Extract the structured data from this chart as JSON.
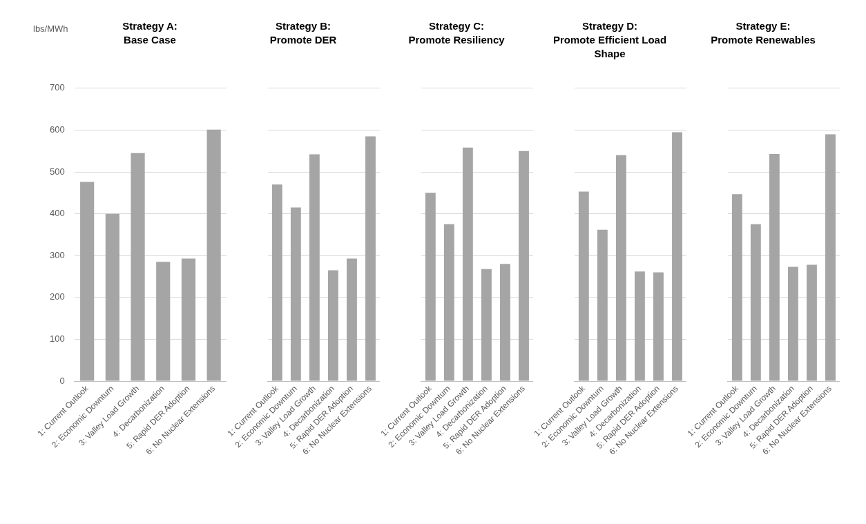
{
  "chart_data": [
    {
      "type": "bar",
      "title": "Strategy A: Base Case",
      "ylabel": "lbs/MWh",
      "categories": [
        "1: Current Outlook",
        "2: Economic Downturn",
        "3: Valley Load Growth",
        "4: Decarbonization",
        "5: Rapid DER Adoption",
        "6: No Nuclear Extensions"
      ],
      "values": [
        476,
        400,
        545,
        285,
        293,
        601
      ],
      "color": "#a5a5a5",
      "ylim": [
        0,
        700
      ],
      "yticks": [
        0,
        100,
        200,
        300,
        400,
        500,
        600,
        700
      ],
      "grid": "y"
    },
    {
      "type": "bar",
      "title": "Strategy B: Promote DER",
      "categories": [
        "1: Current Outlook",
        "2: Economic Downturn",
        "3: Valley Load Growth",
        "4: Decarbonization",
        "5: Rapid DER Adoption",
        "6: No Nuclear Extensions"
      ],
      "values": [
        470,
        415,
        542,
        265,
        293,
        585
      ],
      "color": "#a5a5a5",
      "ylim": [
        0,
        700
      ],
      "yticks": [
        0,
        100,
        200,
        300,
        400,
        500,
        600,
        700
      ],
      "grid": "y",
      "tick_labels": "x"
    },
    {
      "type": "bar",
      "title": "Strategy C: Promote Resiliency",
      "categories": [
        "1: Current Outlook",
        "2: Economic Downturn",
        "3: Valley Load Growth",
        "4: Decarbonization",
        "5: Rapid DER Adoption",
        "6: No Nuclear Extensions"
      ],
      "values": [
        450,
        375,
        558,
        268,
        280,
        550
      ],
      "color": "#a5a5a5",
      "ylim": [
        0,
        700
      ],
      "yticks": [
        0,
        100,
        200,
        300,
        400,
        500,
        600,
        700
      ],
      "grid": "y",
      "tick_labels": "x"
    },
    {
      "type": "bar",
      "title": "Strategy D: Promote Efficient Load Shape",
      "categories": [
        "1: Current Outlook",
        "2: Economic Downturn",
        "3: Valley Load Growth",
        "4: Decarbonization",
        "5: Rapid DER Adoption",
        "6: No Nuclear Extensions"
      ],
      "values": [
        453,
        362,
        540,
        262,
        260,
        595
      ],
      "color": "#a5a5a5",
      "ylim": [
        0,
        700
      ],
      "yticks": [
        0,
        100,
        200,
        300,
        400,
        500,
        600,
        700
      ],
      "grid": "y",
      "tick_labels": "x"
    },
    {
      "type": "bar",
      "title": "Strategy E: Promote Renewables",
      "categories": [
        "1: Current Outlook",
        "2: Economic Downturn",
        "3: Valley Load Growth",
        "4: Decarbonization",
        "5: Rapid DER Adoption",
        "6: No Nuclear Extensions"
      ],
      "values": [
        447,
        375,
        543,
        273,
        278,
        590
      ],
      "color": "#a5a5a5",
      "ylim": [
        0,
        700
      ],
      "yticks": [
        0,
        100,
        200,
        300,
        400,
        500,
        600,
        700
      ],
      "grid": "y",
      "tick_labels": "x"
    }
  ]
}
